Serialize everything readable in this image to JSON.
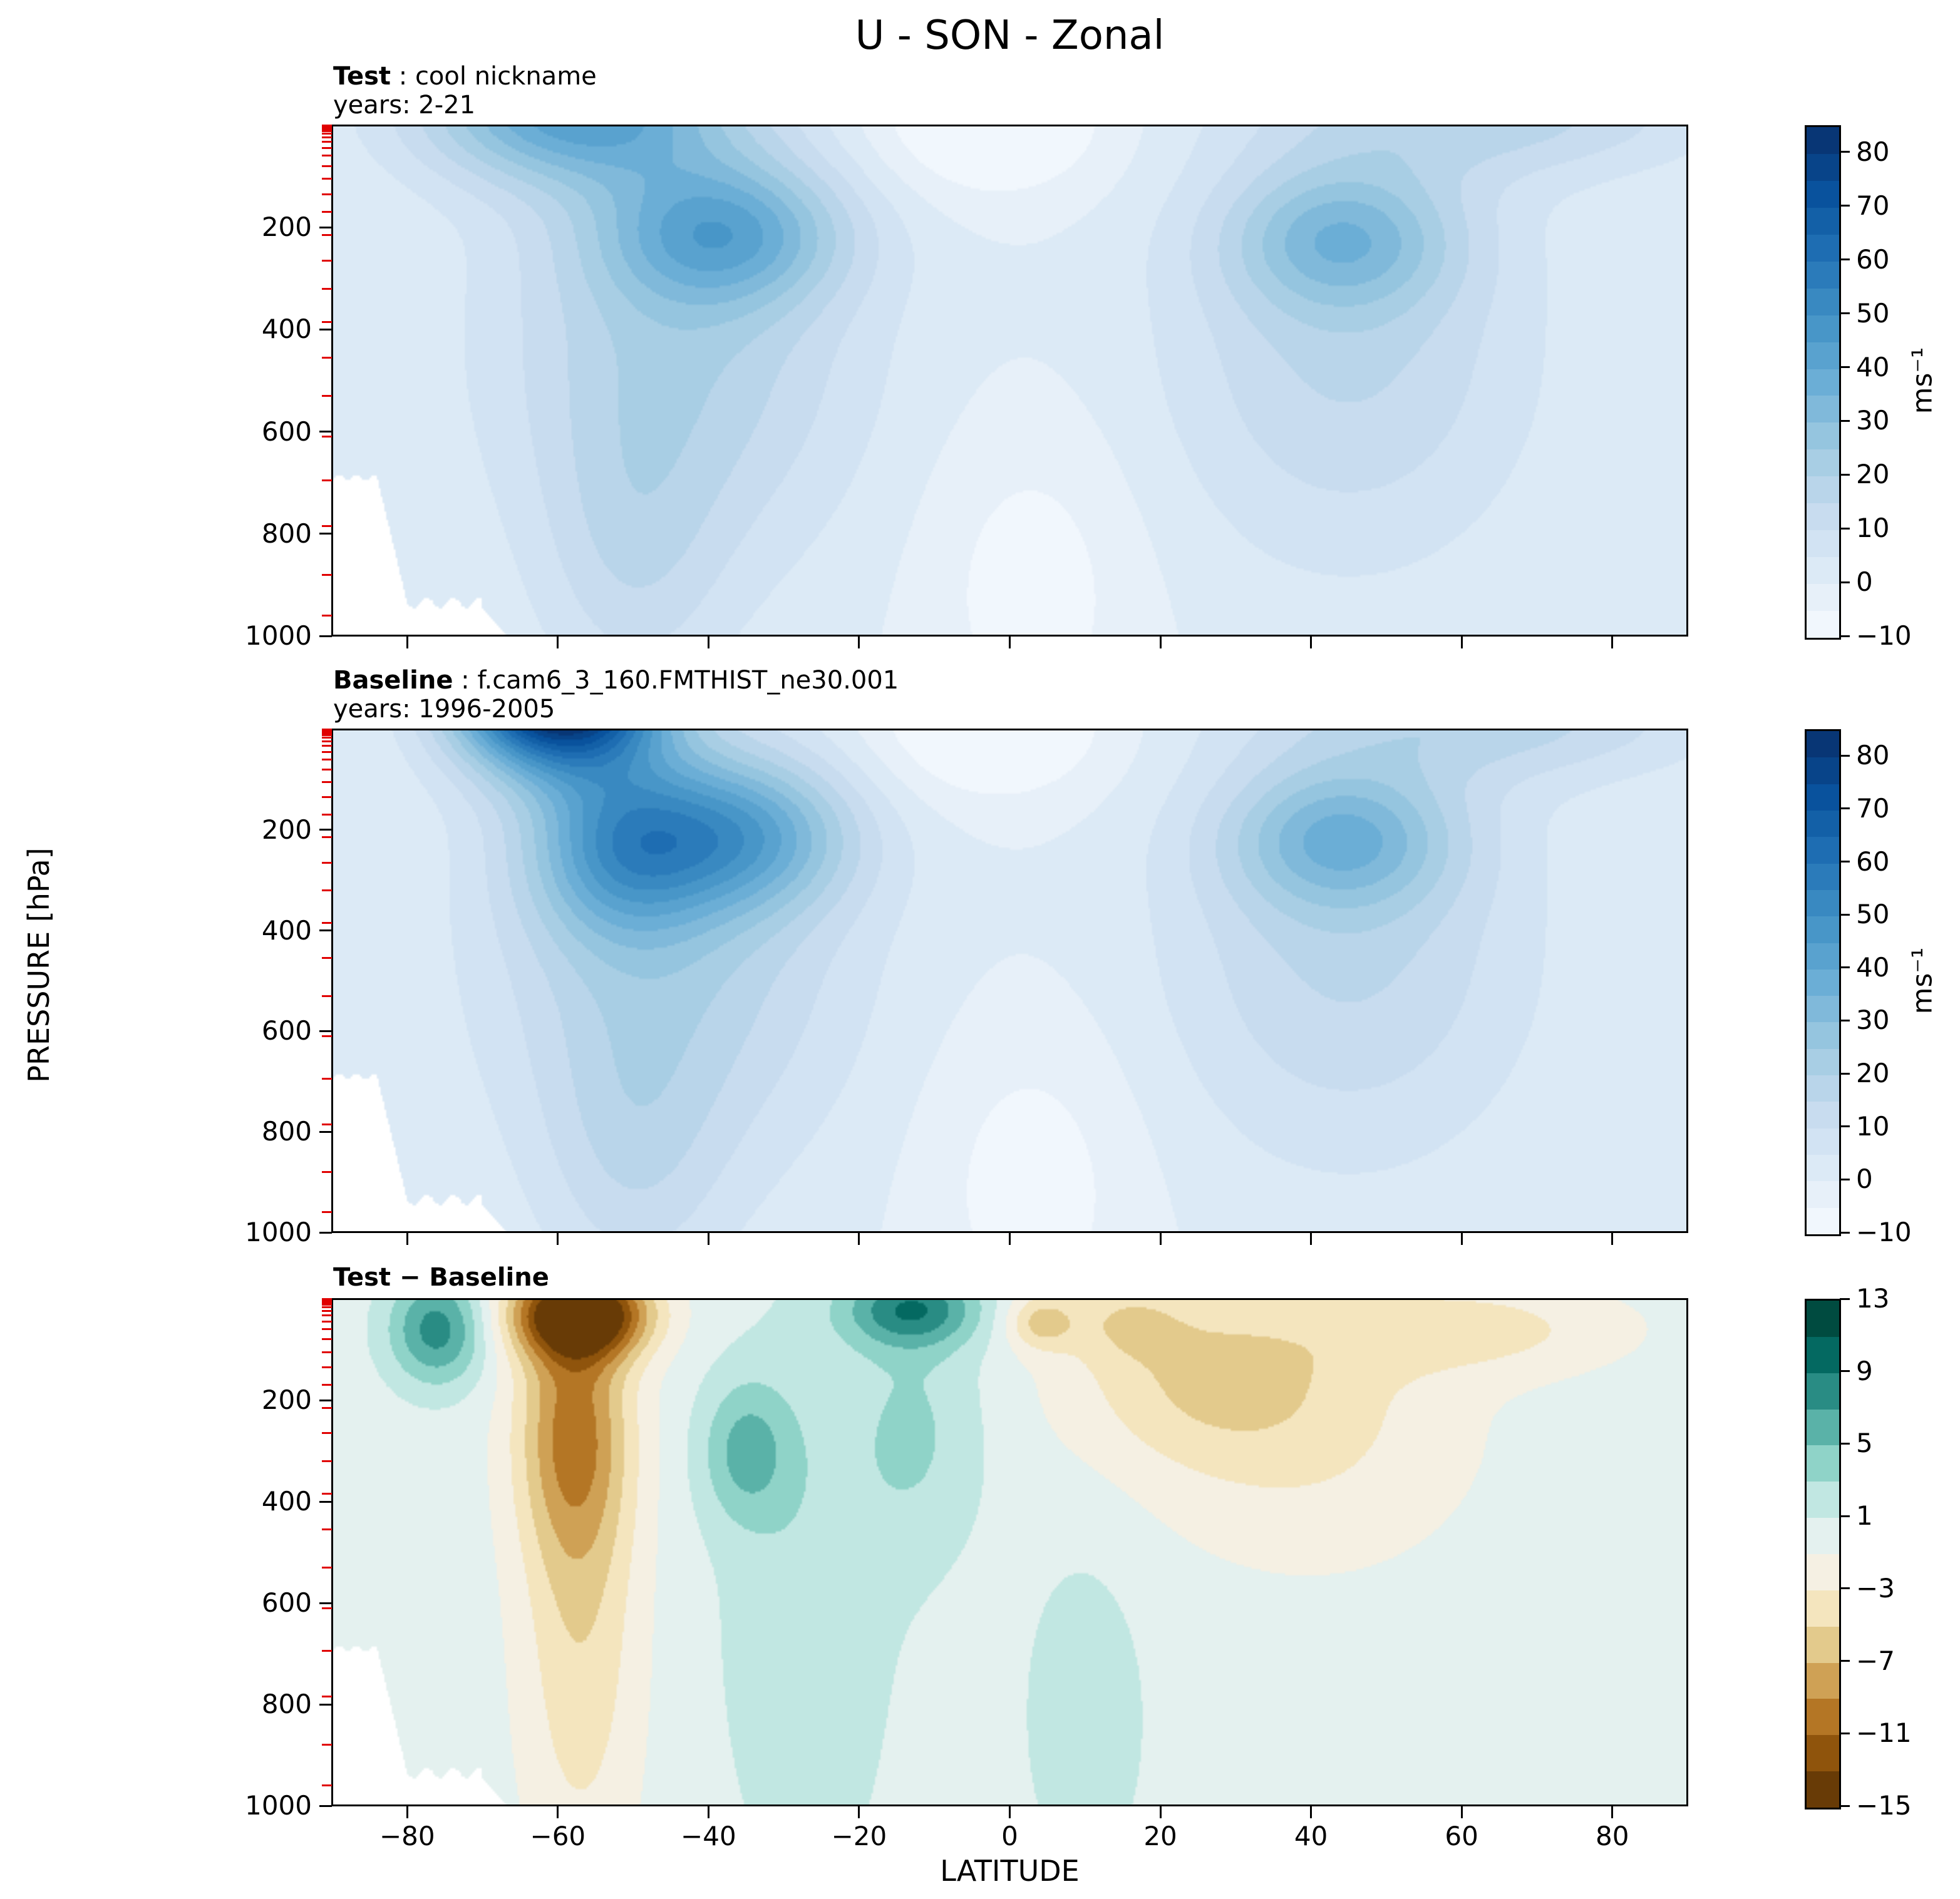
{
  "chart_data": {
    "type": "filled_contour",
    "title": "U - SON - Zonal",
    "xlabel": "LATITUDE",
    "ylabel": "PRESSURE [hPa]",
    "axes": {
      "x_range_deg": [
        -90,
        90
      ],
      "y_range_hpa": [
        0,
        1000
      ],
      "y_inverted": true
    },
    "x_tick_labels": [
      "−80",
      "−60",
      "−40",
      "−20",
      "0",
      "20",
      "40",
      "60",
      "80"
    ],
    "y_tick_labels": [
      "200",
      "400",
      "600",
      "800",
      "1000"
    ],
    "model_level_marks_hpa": [
      1,
      3,
      5,
      8,
      12,
      17,
      24,
      33,
      45,
      60,
      80,
      105,
      135,
      170,
      215,
      265,
      320,
      385,
      455,
      530,
      610,
      695,
      785,
      880,
      960
    ],
    "colormaps": {
      "Blues": [
        "#f7fbff",
        "#deebf7",
        "#c6dbef",
        "#9ecae1",
        "#6baed6",
        "#4292c6",
        "#2171b5",
        "#08519c",
        "#08306b"
      ],
      "BrBG": [
        "#543005",
        "#8c510a",
        "#bf812d",
        "#dfc27d",
        "#f6e8c3",
        "#f5f5f5",
        "#c7eae5",
        "#80cdc1",
        "#35978f",
        "#01665e",
        "#003c30"
      ]
    },
    "panels": [
      {
        "id": "test",
        "label_bold": "Test",
        "label_rest": " : cool nickname",
        "subtitle": "years: 2-21",
        "colormap": "Blues",
        "levels": {
          "min": -10,
          "max": 85,
          "step": 5
        },
        "colorbar_tick_labels": [
          "80",
          "70",
          "60",
          "50",
          "40",
          "30",
          "20",
          "10",
          "0",
          "−10"
        ],
        "colorbar_unit": "ms⁻¹",
        "surface_mask": true,
        "field_gaussians": [
          {
            "amp": 30,
            "lat0": -38,
            "latw": 16,
            "p0": 210,
            "pw": 140
          },
          {
            "amp": 24,
            "lat0": 44,
            "latw": 15,
            "p0": 220,
            "pw": 140
          },
          {
            "amp": 20,
            "lat0": -44,
            "latw": 24,
            "p0": 420,
            "pw": 430
          },
          {
            "amp": 16,
            "lat0": 45,
            "latw": 24,
            "p0": 430,
            "pw": 420
          },
          {
            "amp": 40,
            "lat0": -58,
            "latw": 20,
            "p0": -30,
            "pw": 140
          },
          {
            "amp": 16,
            "lat0": 65,
            "latw": 28,
            "p0": -20,
            "pw": 120
          },
          {
            "amp": -14,
            "lat0": -3,
            "latw": 16,
            "p0": -10,
            "pw": 150
          },
          {
            "amp": -8,
            "lat0": 3,
            "latw": 14,
            "p0": 900,
            "pw": 320
          },
          {
            "amp": 10,
            "lat0": -50,
            "latw": 12,
            "p0": 850,
            "pw": 300
          }
        ]
      },
      {
        "id": "baseline",
        "label_bold": "Baseline",
        "label_rest": " : f.cam6_3_160.FMTHIST_ne30.001",
        "subtitle": "years: 1996-2005",
        "colormap": "Blues",
        "levels": {
          "min": -10,
          "max": 85,
          "step": 5
        },
        "colorbar_tick_labels": [
          "80",
          "70",
          "60",
          "50",
          "40",
          "30",
          "20",
          "10",
          "0",
          "−10"
        ],
        "colorbar_unit": "ms⁻¹",
        "surface_mask": true,
        "field_gaussians": [
          {
            "amp": 32,
            "lat0": -36,
            "latw": 15,
            "p0": 210,
            "pw": 150
          },
          {
            "amp": 26,
            "lat0": 44,
            "latw": 15,
            "p0": 215,
            "pw": 140
          },
          {
            "amp": 20,
            "lat0": -45,
            "latw": 24,
            "p0": 420,
            "pw": 440
          },
          {
            "amp": 16,
            "lat0": 45,
            "latw": 24,
            "p0": 430,
            "pw": 420
          },
          {
            "amp": 100,
            "lat0": -60,
            "latw": 13,
            "p0": -80,
            "pw": 150
          },
          {
            "amp": 30,
            "lat0": -52,
            "latw": 12,
            "p0": 230,
            "pw": 180
          },
          {
            "amp": 16,
            "lat0": 65,
            "latw": 28,
            "p0": -20,
            "pw": 120
          },
          {
            "amp": -14,
            "lat0": -3,
            "latw": 16,
            "p0": -10,
            "pw": 150
          },
          {
            "amp": -8,
            "lat0": 3,
            "latw": 14,
            "p0": 900,
            "pw": 320
          },
          {
            "amp": 10,
            "lat0": -50,
            "latw": 12,
            "p0": 850,
            "pw": 300
          }
        ]
      },
      {
        "id": "diff",
        "label_bold": "Test − Baseline",
        "label_rest": "",
        "subtitle": "",
        "colormap": "BrBG",
        "levels": {
          "min": -15,
          "max": 13,
          "step": 2
        },
        "colorbar_tick_labels": [
          "13",
          "9",
          "5",
          "1",
          "−3",
          "−7",
          "−11",
          "−15"
        ],
        "colorbar_unit": "",
        "surface_mask": true,
        "field_gaussians": [
          {
            "amp": -16,
            "lat0": -57,
            "latw": 9,
            "p0": 30,
            "pw": 85
          },
          {
            "amp": -8,
            "lat0": -58,
            "latw": 7.5,
            "p0": 250,
            "pw": 260
          },
          {
            "amp": -4.5,
            "lat0": -57,
            "latw": 8,
            "p0": 650,
            "pw": 500
          },
          {
            "amp": 8,
            "lat0": -76,
            "latw": 6.5,
            "p0": 60,
            "pw": 110
          },
          {
            "amp": 8,
            "lat0": -13,
            "latw": 9,
            "p0": 20,
            "pw": 75
          },
          {
            "amp": 5,
            "lat0": -35,
            "latw": 6,
            "p0": 300,
            "pw": 140
          },
          {
            "amp": 2.5,
            "lat0": -27,
            "latw": 12,
            "p0": 600,
            "pw": 600
          },
          {
            "amp": -4,
            "lat0": 25,
            "latw": 18,
            "p0": 150,
            "pw": 180
          },
          {
            "amp": -3,
            "lat0": 40,
            "latw": 22,
            "p0": 250,
            "pw": 280
          },
          {
            "amp": -5,
            "lat0": 4,
            "latw": 4.5,
            "p0": 45,
            "pw": 55
          },
          {
            "amp": 2.5,
            "lat0": 10,
            "latw": 8,
            "p0": 820,
            "pw": 320
          },
          {
            "amp": -3.5,
            "lat0": 62,
            "latw": 20,
            "p0": 60,
            "pw": 90
          },
          {
            "amp": 3,
            "lat0": -12,
            "latw": 9,
            "p0": 260,
            "pw": 260
          },
          {
            "amp": -3,
            "lat0": 15,
            "latw": 8,
            "p0": 40,
            "pw": 80
          }
        ]
      }
    ]
  }
}
